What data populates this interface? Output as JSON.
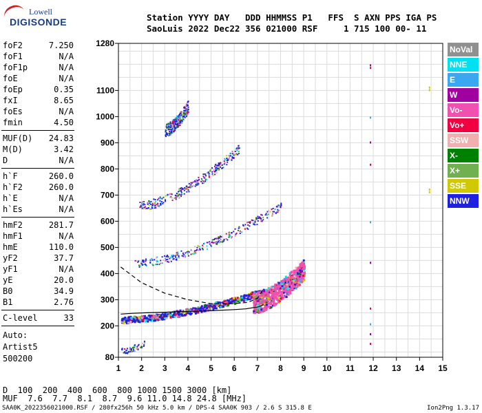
{
  "logo": {
    "line1": "Lowell",
    "line2": "DIGISONDE"
  },
  "header": {
    "line1": "Station YYYY DAY   DDD HHMMSS P1   FFS  S AXN PPS IGA PS",
    "line2": "SaoLuis 2022 Dec22 356 021000 RSF     1 715 100 00- 11"
  },
  "params_group1": [
    {
      "k": "foF2",
      "v": "7.250"
    },
    {
      "k": "foF1",
      "v": "N/A"
    },
    {
      "k": "foF1p",
      "v": "N/A"
    },
    {
      "k": "foE",
      "v": "N/A"
    },
    {
      "k": "foEp",
      "v": "0.35"
    },
    {
      "k": "fxI",
      "v": "8.65"
    },
    {
      "k": "foEs",
      "v": "N/A"
    },
    {
      "k": "fmin",
      "v": "4.50"
    }
  ],
  "params_group2": [
    {
      "k": "MUF(D)",
      "v": "24.83"
    },
    {
      "k": "M(D)",
      "v": "3.42"
    },
    {
      "k": "D",
      "v": "N/A"
    }
  ],
  "params_group3": [
    {
      "k": "h`F",
      "v": "260.0"
    },
    {
      "k": "h`F2",
      "v": "260.0"
    },
    {
      "k": "h`E",
      "v": "N/A"
    },
    {
      "k": "h`Es",
      "v": "N/A"
    }
  ],
  "params_group4": [
    {
      "k": "hmF2",
      "v": "281.7"
    },
    {
      "k": "hmF1",
      "v": "N/A"
    },
    {
      "k": "hmE",
      "v": "110.0"
    },
    {
      "k": "yF2",
      "v": "37.7"
    },
    {
      "k": "yF1",
      "v": "N/A"
    },
    {
      "k": "yE",
      "v": "20.0"
    },
    {
      "k": "B0",
      "v": "34.9"
    },
    {
      "k": "B1",
      "v": "2.76"
    }
  ],
  "params_group5": [
    {
      "k": "C-level",
      "v": "33"
    }
  ],
  "misc": {
    "auto": "Auto:",
    "artist": "Artist5",
    "version": "500200"
  },
  "legend": [
    {
      "label": "NoVal",
      "color": "#909090",
      "text": "#ffffff"
    },
    {
      "label": "NNE",
      "color": "#00e0f0",
      "text": "#ffffff"
    },
    {
      "label": "E",
      "color": "#3aa8f0",
      "text": "#ffffff"
    },
    {
      "label": "W",
      "color": "#a000a0",
      "text": "#ffffff"
    },
    {
      "label": "Vo-",
      "color": "#f050b0",
      "text": "#ffffff"
    },
    {
      "label": "Vo+",
      "color": "#f00040",
      "text": "#ffffff"
    },
    {
      "label": "SSW",
      "color": "#f0b0b0",
      "text": "#ffffff"
    },
    {
      "label": "X-",
      "color": "#008000",
      "text": "#ffffff"
    },
    {
      "label": "X+",
      "color": "#70b050",
      "text": "#ffffff"
    },
    {
      "label": "SSE",
      "color": "#d0c800",
      "text": "#ffffff"
    },
    {
      "label": "NNW",
      "color": "#2020e0",
      "text": "#ffffff"
    }
  ],
  "muf_table": {
    "d_label": "D",
    "d_values": "  100  200  400  600  800 1000 1500 3000 [km]",
    "muf_label": "MUF",
    "muf_values": "  7.6  7.7  8.1  8.7  9.6 11.0 14.8 24.8 [MHz]"
  },
  "footer": {
    "left": "SAA0K_2022356021000.RSF / 280fx256h 50 kHz 5.0 km / DPS-4 SAA0K 903 / 2.6 S 315.8 E",
    "right": "Ion2Png 1.3.17"
  },
  "chart_data": {
    "type": "scatter",
    "title": "",
    "xlabel": "",
    "ylabel": "",
    "xlim": [
      1,
      15
    ],
    "ylim": [
      80,
      1280
    ],
    "xticks": [
      1,
      2,
      3,
      4,
      5,
      6,
      7,
      8,
      9,
      10,
      11,
      12,
      13,
      14,
      15
    ],
    "yticks": [
      80,
      200,
      300,
      400,
      500,
      600,
      700,
      800,
      900,
      1000,
      1100,
      1280
    ],
    "grid": true,
    "traces": [
      {
        "name": "F2 1st hop",
        "x_start": 1.1,
        "x_end": 7.3,
        "y_start": 225,
        "y_end": 335,
        "spread": 12
      },
      {
        "name": "F2 2nd hop",
        "x_start": 1.7,
        "x_end": 8.0,
        "y_start": 440,
        "y_end": 660,
        "spread": 15
      },
      {
        "name": "F2 3rd hop",
        "x_start": 1.9,
        "x_end": 6.2,
        "y_start": 660,
        "y_end": 880,
        "spread": 18
      },
      {
        "name": "F2 4th hop",
        "x_start": 3.0,
        "x_end": 4.0,
        "y_start": 950,
        "y_end": 1040,
        "spread": 25
      },
      {
        "name": "spread F",
        "x_start": 6.8,
        "x_end": 9.0,
        "y_start": 290,
        "y_end": 420,
        "spread": 40
      },
      {
        "name": "low E",
        "x_start": 1.1,
        "x_end": 2.1,
        "y_start": 105,
        "y_end": 135,
        "spread": 12
      }
    ],
    "profile_curve": {
      "x": [
        7.25,
        7.2,
        7.0,
        6.5,
        6.0,
        5.0,
        4.0,
        3.0,
        2.2,
        1.6,
        1.1
      ],
      "y": [
        281.7,
        278,
        272,
        265,
        262,
        258,
        255,
        252,
        250,
        248,
        245
      ]
    },
    "virtual_curve": {
      "x": [
        1.1,
        2.0,
        3.0,
        4.0,
        5.0,
        6.0,
        6.6,
        7.0,
        7.25
      ],
      "y": [
        425,
        365,
        325,
        300,
        285,
        285,
        290,
        305,
        340
      ]
    },
    "isolated_points": [
      {
        "x": 11.85,
        "y": 1200
      },
      {
        "x": 11.85,
        "y": 1190
      },
      {
        "x": 11.85,
        "y": 1000
      },
      {
        "x": 11.85,
        "y": 905
      },
      {
        "x": 11.85,
        "y": 820
      },
      {
        "x": 11.85,
        "y": 600
      },
      {
        "x": 11.85,
        "y": 445
      },
      {
        "x": 11.85,
        "y": 270
      },
      {
        "x": 11.85,
        "y": 210
      },
      {
        "x": 11.85,
        "y": 172
      },
      {
        "x": 11.85,
        "y": 135
      },
      {
        "x": 14.4,
        "y": 1105
      },
      {
        "x": 14.4,
        "y": 1115
      },
      {
        "x": 14.4,
        "y": 725
      },
      {
        "x": 14.4,
        "y": 715
      }
    ]
  }
}
